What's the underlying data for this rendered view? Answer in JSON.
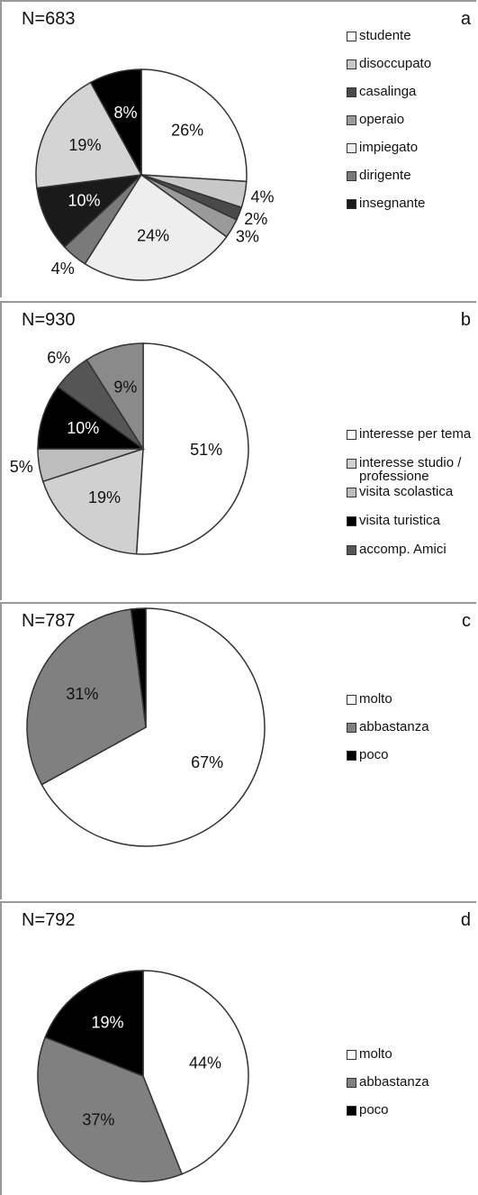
{
  "chart_data": [
    {
      "type": "pie",
      "title": "N=683",
      "label": "a",
      "categories": [
        "studente",
        "disoccupato",
        "casalinga",
        "operaio",
        "impiegato",
        "dirigente",
        "insegnante",
        null,
        null
      ],
      "values": [
        26,
        4,
        2,
        3,
        24,
        4,
        10,
        19,
        8
      ],
      "value_labels": [
        "26%",
        "4%",
        "2%",
        "3%",
        "24%",
        "4%",
        "10%",
        "19%",
        "8%"
      ],
      "colors": [
        "#ffffff",
        "#c8c8c8",
        "#4a4a4a",
        "#9a9a9a",
        "#eeeeee",
        "#7a7a7a",
        "#1a1a1a",
        "#d4d4d4",
        "#000000"
      ]
    },
    {
      "type": "pie",
      "title": "N=930",
      "label": "b",
      "categories": [
        "interesse per tema",
        "interesse studio / professione",
        "visita scolastica",
        "visita turistica",
        "accomp. Amici",
        null
      ],
      "values": [
        51,
        19,
        5,
        10,
        6,
        9
      ],
      "value_labels": [
        "51%",
        "19%",
        "5%",
        "10%",
        "6%",
        "9%"
      ],
      "colors": [
        "#ffffff",
        "#d0d0d0",
        "#bdbdbd",
        "#000000",
        "#555555",
        "#8a8a8a"
      ]
    },
    {
      "type": "pie",
      "title": "N=787",
      "label": "c",
      "categories": [
        "molto",
        "abbastanza",
        "poco"
      ],
      "values": [
        67,
        31,
        2
      ],
      "value_labels": [
        "67%",
        "31%",
        "2%"
      ],
      "colors": [
        "#ffffff",
        "#808080",
        "#000000"
      ]
    },
    {
      "type": "pie",
      "title": "N=792",
      "label": "d",
      "categories": [
        "molto",
        "abbastanza",
        "poco"
      ],
      "values": [
        44,
        37,
        19
      ],
      "value_labels": [
        "44%",
        "37%",
        "19%"
      ],
      "colors": [
        "#ffffff",
        "#808080",
        "#000000"
      ]
    }
  ]
}
